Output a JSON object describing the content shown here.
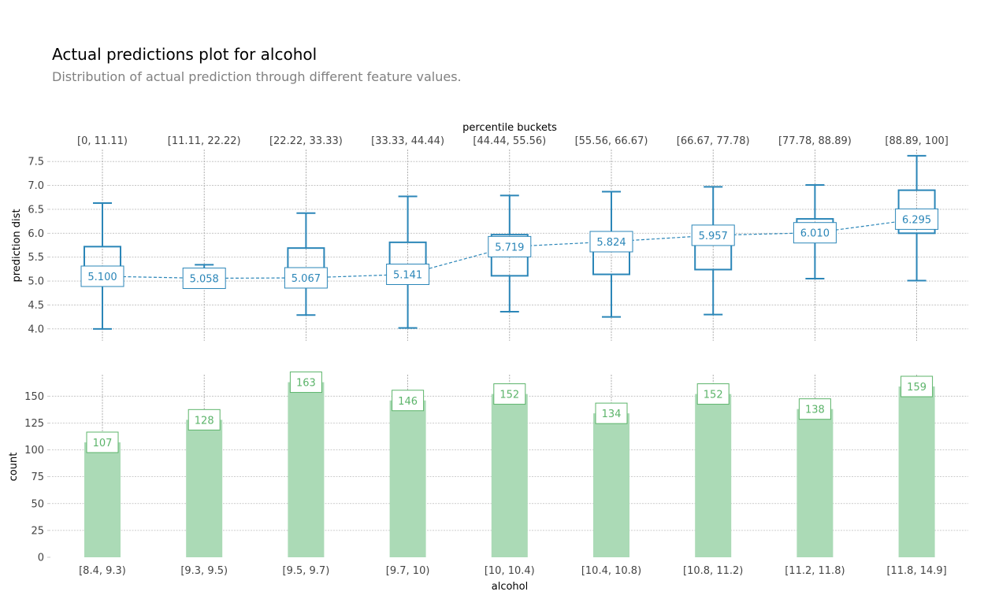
{
  "title": "Actual predictions plot for alcohol",
  "subtitle": "Distribution of actual prediction through different feature values.",
  "colors": {
    "box": "#2b86b8",
    "bar": "#abdab6",
    "bar_label": "#5cb46a",
    "grid": "#bdbdbd",
    "vgrid": "#9a9a9a",
    "axis_text": "#444444",
    "title": "#000000",
    "subtitle": "#808080"
  },
  "chart_data": [
    {
      "type": "box",
      "top_axis_label": "percentile buckets",
      "top_tick_labels": [
        "[0, 11.11)",
        "[11.11, 22.22)",
        "[22.22, 33.33)",
        "[33.33, 44.44)",
        "[44.44, 55.56)",
        "[55.56, 66.67)",
        "[66.67, 77.78)",
        "[77.78, 88.89)",
        "[88.89, 100]"
      ],
      "ylabel": "prediction dist",
      "ylim": [
        3.75,
        7.75
      ],
      "yticks": [
        4.0,
        4.5,
        5.0,
        5.5,
        6.0,
        6.5,
        7.0,
        7.5
      ],
      "grid": true,
      "boxes": [
        {
          "whisker_low": 4.0,
          "q1": 5.0,
          "q3": 5.72,
          "whisker_high": 6.63
        },
        {
          "whisker_low": 5.0,
          "q1": 5.0,
          "q3": 5.0,
          "whisker_high": 5.34
        },
        {
          "whisker_low": 4.29,
          "q1": 5.0,
          "q3": 5.69,
          "whisker_high": 6.42
        },
        {
          "whisker_low": 4.02,
          "q1": 5.0,
          "q3": 5.81,
          "whisker_high": 6.77
        },
        {
          "whisker_low": 4.36,
          "q1": 5.11,
          "q3": 5.97,
          "whisker_high": 6.79
        },
        {
          "whisker_low": 4.25,
          "q1": 5.14,
          "q3": 5.99,
          "whisker_high": 6.87
        },
        {
          "whisker_low": 4.3,
          "q1": 5.24,
          "q3": 6.0,
          "whisker_high": 6.97
        },
        {
          "whisker_low": 5.05,
          "q1": 6.0,
          "q3": 6.3,
          "whisker_high": 7.01
        },
        {
          "whisker_low": 5.01,
          "q1": 6.0,
          "q3": 6.9,
          "whisker_high": 7.62
        }
      ],
      "means": [
        5.1,
        5.058,
        5.067,
        5.141,
        5.719,
        5.824,
        5.957,
        6.01,
        6.295
      ],
      "mean_labels": [
        "5.100",
        "5.058",
        "5.067",
        "5.141",
        "5.719",
        "5.824",
        "5.957",
        "6.010",
        "6.295"
      ]
    },
    {
      "type": "bar",
      "categories": [
        "[8.4, 9.3)",
        "[9.3, 9.5)",
        "[9.5, 9.7)",
        "[9.7, 10)",
        "[10, 10.4)",
        "[10.4, 10.8)",
        "[10.8, 11.2)",
        "[11.2, 11.8)",
        "[11.8, 14.9]"
      ],
      "values": [
        107,
        128,
        163,
        146,
        152,
        134,
        152,
        138,
        159
      ],
      "xlabel": "alcohol",
      "ylabel": "count",
      "ylim": [
        0,
        170
      ],
      "yticks": [
        0,
        25,
        50,
        75,
        100,
        125,
        150
      ],
      "grid": true
    }
  ]
}
